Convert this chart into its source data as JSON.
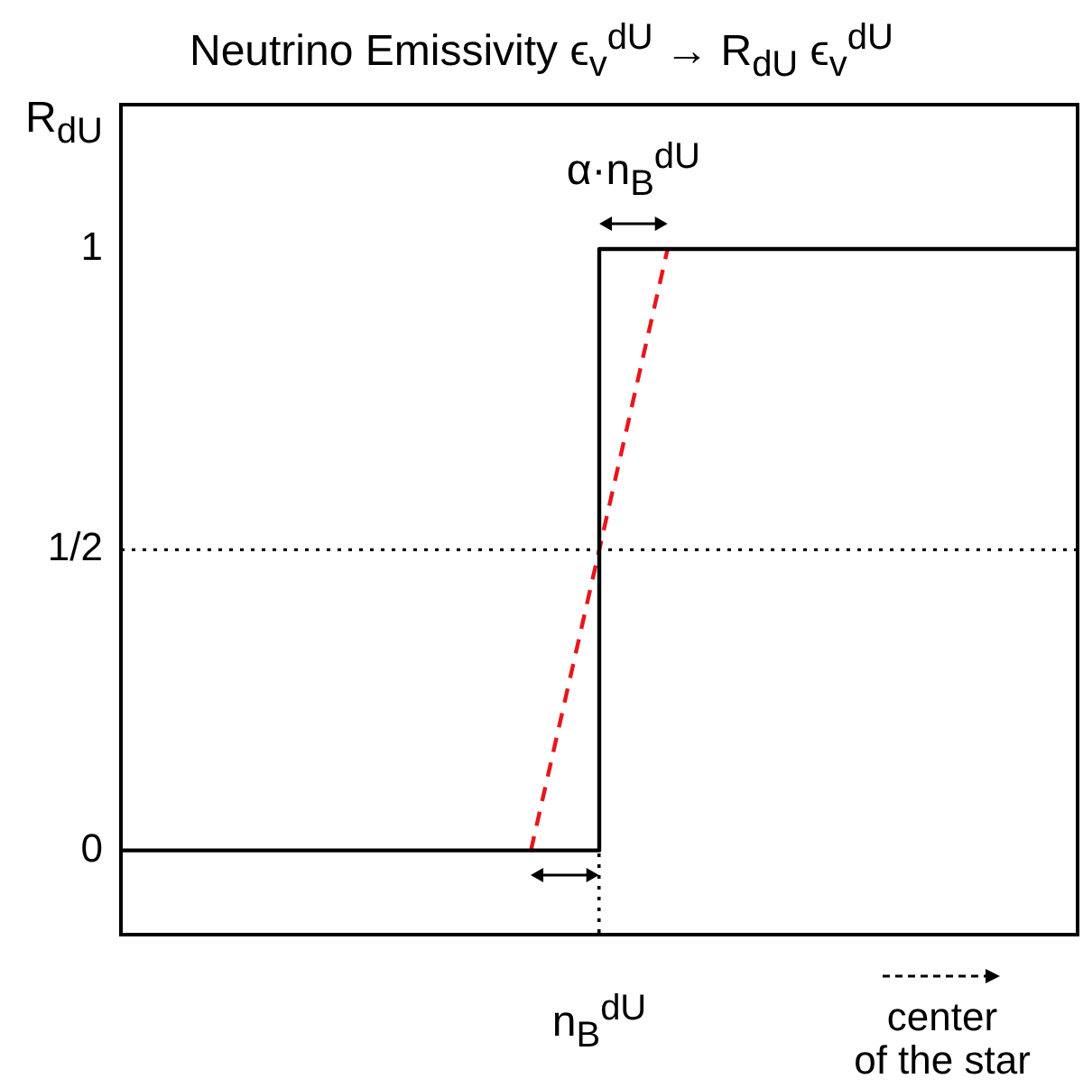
{
  "chart_data": {
    "type": "line",
    "title": "Neutrino Emissivity ϵ$_{v}$$^{dU}$ → R$_{dU}$ ϵ$_{v}$$^{dU}$",
    "ylabel": "R$_{dU}$",
    "categories": [
      null,
      null,
      null,
      null,
      null,
      null,
      null,
      "n$_{B}$$^{dU}$",
      null,
      null,
      null,
      null,
      null,
      null,
      null
    ],
    "ylim": [
      -0.14,
      1.24
    ],
    "yticks": [
      0,
      {
        "value": 0.5,
        "label": "1/2"
      },
      1
    ],
    "series": [
      {
        "type": "step",
        "color": "#000000",
        "values": [
          0,
          0,
          0,
          0,
          0,
          0,
          0,
          1,
          1,
          1,
          1,
          1,
          1,
          1,
          1
        ],
        "line_style": "solid"
      },
      {
        "color": "#e8161b",
        "values": [
          null,
          null,
          null,
          null,
          null,
          null,
          0,
          null,
          1,
          null,
          null,
          null,
          null,
          null,
          null
        ],
        "line_style": "dashed"
      }
    ],
    "ref_lines": [
      {
        "axis": "y",
        "value": 0.5,
        "color": "#000000",
        "line_style": "dotted"
      }
    ],
    "annotations": [
      "α·n$_{B}$$^{dU}$",
      "center of the star"
    ],
    "grid": false,
    "legend": false,
    "marker": "none"
  }
}
